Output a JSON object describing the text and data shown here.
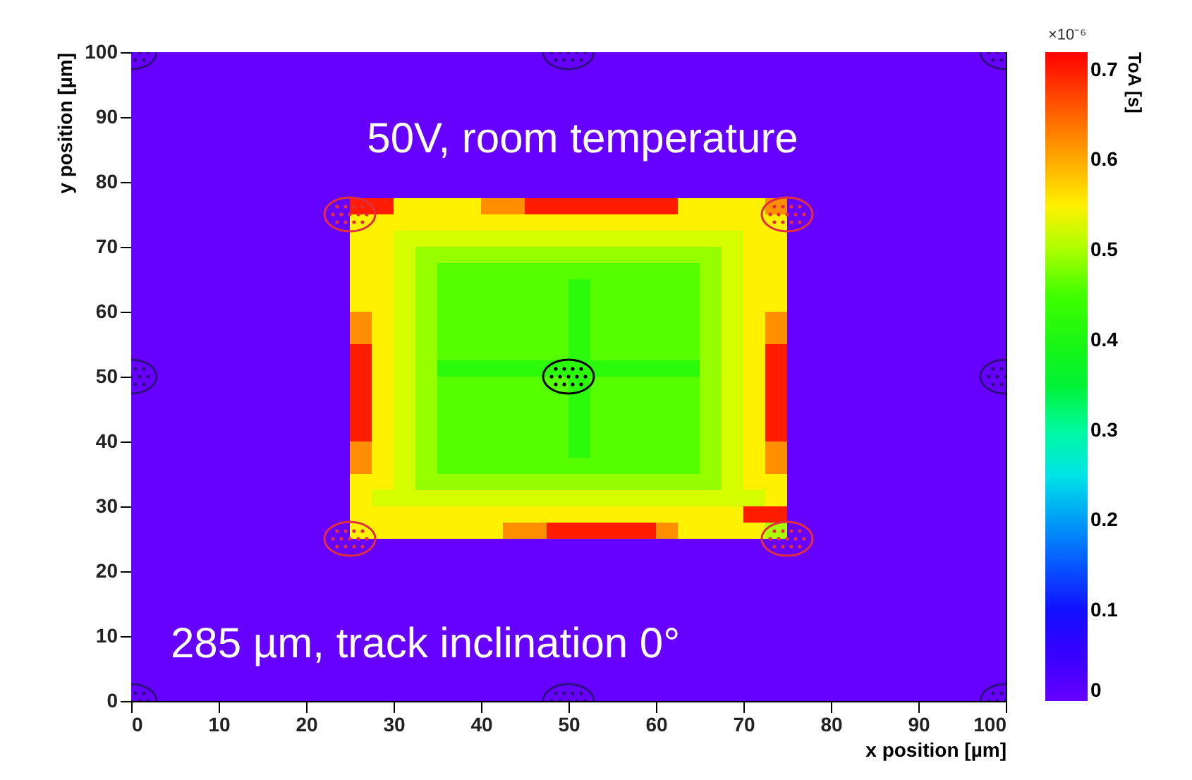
{
  "chart_data": {
    "type": "heatmap",
    "xlabel": "x position [µm]",
    "ylabel": "y position [µm]",
    "clabel": "ToA [s]",
    "annotations": [
      "50V, room temperature",
      "285 µm, track inclination 0°",
      "×10⁻⁶"
    ],
    "xlim": [
      0,
      100
    ],
    "ylim": [
      0,
      100
    ],
    "xticks": [
      0,
      10,
      20,
      30,
      40,
      50,
      60,
      70,
      80,
      90,
      100
    ],
    "yticks": [
      0,
      10,
      20,
      30,
      40,
      50,
      60,
      70,
      80,
      90,
      100
    ],
    "clim": [
      0,
      0.72
    ],
    "cticks": [
      0,
      0.1,
      0.2,
      0.3,
      0.4,
      0.5,
      0.6,
      0.7
    ],
    "colors": [
      "#6600ff",
      "#1400ff",
      "#0080ff",
      "#00ffe0",
      "#00f020",
      "#40ff00",
      "#ffff00",
      "#ff8000",
      "#ff0000"
    ],
    "x": [
      1.25,
      3.75,
      6.25,
      8.75,
      11.25,
      13.75,
      16.25,
      18.75,
      21.25,
      23.75,
      26.25,
      28.75,
      31.25,
      33.75,
      36.25,
      38.75,
      41.25,
      43.75,
      46.25,
      48.75,
      51.25,
      53.75,
      56.25,
      58.75,
      61.25,
      63.75,
      66.25,
      68.75,
      71.25,
      73.75,
      76.25,
      78.75,
      81.25,
      83.75,
      86.25,
      88.75,
      91.25,
      93.75,
      96.25,
      98.75
    ],
    "y": [
      98.75,
      96.25,
      93.75,
      91.25,
      88.75,
      86.25,
      83.75,
      81.25,
      78.75,
      76.25,
      73.75,
      71.25,
      68.75,
      66.25,
      63.75,
      61.25,
      58.75,
      56.25,
      53.75,
      51.25,
      48.75,
      46.25,
      43.75,
      41.25,
      38.75,
      36.25,
      33.75,
      31.25,
      28.75,
      26.25,
      23.75,
      21.25,
      18.75,
      16.25,
      13.75,
      11.25,
      8.75,
      6.25,
      3.75,
      1.25
    ],
    "cells": [
      [
        0,
        0,
        0,
        0,
        0,
        0,
        0,
        0,
        0,
        0,
        0,
        0,
        0,
        0,
        0,
        0,
        0,
        0,
        0,
        0,
        0,
        0,
        0,
        0,
        0,
        0,
        0,
        0,
        0,
        0,
        0,
        0,
        0,
        0,
        0,
        0,
        0,
        0,
        0,
        0
      ],
      [
        0,
        0,
        0,
        0,
        0,
        0,
        0,
        0,
        0,
        0,
        0,
        0,
        0,
        0,
        0,
        0,
        0,
        0,
        0,
        0,
        0,
        0,
        0,
        0,
        0,
        0,
        0,
        0,
        0,
        0,
        0,
        0,
        0,
        0,
        0,
        0,
        0,
        0,
        0,
        0
      ],
      [
        0,
        0,
        0,
        0,
        0,
        0,
        0,
        0,
        0,
        0,
        0,
        0,
        0,
        0,
        0,
        0,
        0,
        0,
        0,
        0,
        0,
        0,
        0,
        0,
        0,
        0,
        0,
        0,
        0,
        0,
        0,
        0,
        0,
        0,
        0,
        0,
        0,
        0,
        0,
        0
      ],
      [
        0,
        0,
        0,
        0,
        0,
        0,
        0,
        0,
        0,
        0,
        0,
        0,
        0,
        0,
        0,
        0,
        0,
        0,
        0,
        0,
        0,
        0,
        0,
        0,
        0,
        0,
        0,
        0,
        0,
        0,
        0,
        0,
        0,
        0,
        0,
        0,
        0,
        0,
        0,
        0
      ],
      [
        0,
        0,
        0,
        0,
        0,
        0,
        0,
        0,
        0,
        0,
        0,
        0,
        0,
        0,
        0,
        0,
        0,
        0,
        0,
        0,
        0,
        0,
        0,
        0,
        0,
        0,
        0,
        0,
        0,
        0,
        0,
        0,
        0,
        0,
        0,
        0,
        0,
        0,
        0,
        0
      ],
      [
        0,
        0,
        0,
        0,
        0,
        0,
        0,
        0,
        0,
        0,
        0,
        0,
        0,
        0,
        0,
        0,
        0,
        0,
        0,
        0,
        0,
        0,
        0,
        0,
        0,
        0,
        0,
        0,
        0,
        0,
        0,
        0,
        0,
        0,
        0,
        0,
        0,
        0,
        0,
        0
      ],
      [
        0,
        0,
        0,
        0,
        0,
        0,
        0,
        0,
        0,
        0,
        0,
        0,
        0,
        0,
        0,
        0,
        0,
        0,
        0,
        0,
        0,
        0,
        0,
        0,
        0,
        0,
        0,
        0,
        0,
        0,
        0,
        0,
        0,
        0,
        0,
        0,
        0,
        0,
        0,
        0
      ],
      [
        0,
        0,
        0,
        0,
        0,
        0,
        0,
        0,
        0,
        0,
        0,
        0,
        0,
        0,
        0,
        0,
        0,
        0,
        0,
        0,
        0,
        0,
        0,
        0,
        0,
        0,
        0,
        0,
        0,
        0,
        0,
        0,
        0,
        0,
        0,
        0,
        0,
        0,
        0,
        0
      ],
      [
        0,
        0,
        0,
        0,
        0,
        0,
        0,
        0,
        0,
        0,
        0,
        0,
        0,
        0,
        0,
        0,
        0,
        0,
        0,
        0,
        0,
        0,
        0,
        0,
        0,
        0,
        0,
        0,
        0,
        0,
        0,
        0,
        0,
        0,
        0,
        0,
        0,
        0,
        0,
        0
      ],
      [
        0,
        0,
        0,
        0,
        0,
        0,
        0,
        0,
        0,
        0,
        0.7,
        0.7,
        0.55,
        0.55,
        0.55,
        0.55,
        0.62,
        0.62,
        0.7,
        0.7,
        0.7,
        0.7,
        0.7,
        0.7,
        0.7,
        0.55,
        0.55,
        0.55,
        0.55,
        0.62,
        0,
        0,
        0,
        0,
        0,
        0,
        0,
        0,
        0,
        0
      ],
      [
        0,
        0,
        0,
        0,
        0,
        0,
        0,
        0,
        0,
        0,
        0.55,
        0.55,
        0.55,
        0.55,
        0.55,
        0.55,
        0.55,
        0.55,
        0.55,
        0.55,
        0.55,
        0.55,
        0.55,
        0.55,
        0.55,
        0.55,
        0.55,
        0.55,
        0.55,
        0.55,
        0,
        0,
        0,
        0,
        0,
        0,
        0,
        0,
        0,
        0
      ],
      [
        0,
        0,
        0,
        0,
        0,
        0,
        0,
        0,
        0,
        0,
        0.55,
        0.55,
        0.52,
        0.52,
        0.52,
        0.52,
        0.52,
        0.52,
        0.52,
        0.52,
        0.52,
        0.52,
        0.52,
        0.52,
        0.52,
        0.52,
        0.52,
        0.52,
        0.55,
        0.55,
        0,
        0,
        0,
        0,
        0,
        0,
        0,
        0,
        0,
        0
      ],
      [
        0,
        0,
        0,
        0,
        0,
        0,
        0,
        0,
        0,
        0,
        0.55,
        0.55,
        0.52,
        0.49,
        0.49,
        0.49,
        0.49,
        0.49,
        0.49,
        0.49,
        0.49,
        0.49,
        0.49,
        0.49,
        0.49,
        0.49,
        0.49,
        0.52,
        0.55,
        0.55,
        0,
        0,
        0,
        0,
        0,
        0,
        0,
        0,
        0,
        0
      ],
      [
        0,
        0,
        0,
        0,
        0,
        0,
        0,
        0,
        0,
        0,
        0.55,
        0.55,
        0.52,
        0.49,
        0.46,
        0.46,
        0.46,
        0.46,
        0.46,
        0.46,
        0.46,
        0.46,
        0.46,
        0.46,
        0.46,
        0.46,
        0.49,
        0.52,
        0.55,
        0.55,
        0,
        0,
        0,
        0,
        0,
        0,
        0,
        0,
        0,
        0
      ],
      [
        0,
        0,
        0,
        0,
        0,
        0,
        0,
        0,
        0,
        0,
        0.55,
        0.55,
        0.52,
        0.49,
        0.46,
        0.46,
        0.46,
        0.46,
        0.46,
        0.46,
        0.42,
        0.46,
        0.46,
        0.46,
        0.46,
        0.46,
        0.49,
        0.52,
        0.55,
        0.55,
        0,
        0,
        0,
        0,
        0,
        0,
        0,
        0,
        0,
        0
      ],
      [
        0,
        0,
        0,
        0,
        0,
        0,
        0,
        0,
        0,
        0,
        0.55,
        0.55,
        0.52,
        0.49,
        0.46,
        0.46,
        0.46,
        0.46,
        0.46,
        0.46,
        0.42,
        0.46,
        0.46,
        0.46,
        0.46,
        0.46,
        0.49,
        0.52,
        0.55,
        0.55,
        0,
        0,
        0,
        0,
        0,
        0,
        0,
        0,
        0,
        0
      ],
      [
        0,
        0,
        0,
        0,
        0,
        0,
        0,
        0,
        0,
        0,
        0.62,
        0.55,
        0.52,
        0.49,
        0.46,
        0.46,
        0.46,
        0.46,
        0.46,
        0.46,
        0.42,
        0.46,
        0.46,
        0.46,
        0.46,
        0.46,
        0.49,
        0.52,
        0.55,
        0.62,
        0,
        0,
        0,
        0,
        0,
        0,
        0,
        0,
        0,
        0
      ],
      [
        0,
        0,
        0,
        0,
        0,
        0,
        0,
        0,
        0,
        0,
        0.62,
        0.55,
        0.52,
        0.49,
        0.46,
        0.46,
        0.46,
        0.46,
        0.46,
        0.46,
        0.42,
        0.46,
        0.46,
        0.46,
        0.46,
        0.46,
        0.49,
        0.52,
        0.55,
        0.62,
        0,
        0,
        0,
        0,
        0,
        0,
        0,
        0,
        0,
        0
      ],
      [
        0,
        0,
        0,
        0,
        0,
        0,
        0,
        0,
        0,
        0,
        0.7,
        0.55,
        0.52,
        0.49,
        0.46,
        0.46,
        0.46,
        0.46,
        0.46,
        0.46,
        0.42,
        0.46,
        0.46,
        0.46,
        0.46,
        0.46,
        0.49,
        0.52,
        0.55,
        0.7,
        0,
        0,
        0,
        0,
        0,
        0,
        0,
        0,
        0,
        0
      ],
      [
        0,
        0,
        0,
        0,
        0,
        0,
        0,
        0,
        0,
        0,
        0.7,
        0.55,
        0.52,
        0.49,
        0.42,
        0.42,
        0.42,
        0.42,
        0.42,
        0.42,
        0.42,
        0.42,
        0.42,
        0.42,
        0.42,
        0.42,
        0.49,
        0.52,
        0.55,
        0.7,
        0,
        0,
        0,
        0,
        0,
        0,
        0,
        0,
        0,
        0
      ],
      [
        0,
        0,
        0,
        0,
        0,
        0,
        0,
        0,
        0,
        0,
        0.7,
        0.55,
        0.52,
        0.49,
        0.46,
        0.46,
        0.46,
        0.46,
        0.46,
        0.46,
        0.42,
        0.46,
        0.46,
        0.46,
        0.46,
        0.46,
        0.49,
        0.52,
        0.55,
        0.7,
        0,
        0,
        0,
        0,
        0,
        0,
        0,
        0,
        0,
        0
      ],
      [
        0,
        0,
        0,
        0,
        0,
        0,
        0,
        0,
        0,
        0,
        0.7,
        0.55,
        0.52,
        0.49,
        0.46,
        0.46,
        0.46,
        0.46,
        0.46,
        0.46,
        0.42,
        0.46,
        0.46,
        0.46,
        0.46,
        0.46,
        0.49,
        0.52,
        0.55,
        0.7,
        0,
        0,
        0,
        0,
        0,
        0,
        0,
        0,
        0,
        0
      ],
      [
        0,
        0,
        0,
        0,
        0,
        0,
        0,
        0,
        0,
        0,
        0.7,
        0.55,
        0.52,
        0.49,
        0.46,
        0.46,
        0.46,
        0.46,
        0.46,
        0.46,
        0.42,
        0.46,
        0.46,
        0.46,
        0.46,
        0.46,
        0.49,
        0.52,
        0.55,
        0.7,
        0,
        0,
        0,
        0,
        0,
        0,
        0,
        0,
        0,
        0
      ],
      [
        0,
        0,
        0,
        0,
        0,
        0,
        0,
        0,
        0,
        0,
        0.7,
        0.55,
        0.52,
        0.49,
        0.46,
        0.46,
        0.46,
        0.46,
        0.46,
        0.46,
        0.42,
        0.46,
        0.46,
        0.46,
        0.46,
        0.46,
        0.49,
        0.52,
        0.55,
        0.7,
        0,
        0,
        0,
        0,
        0,
        0,
        0,
        0,
        0,
        0
      ],
      [
        0,
        0,
        0,
        0,
        0,
        0,
        0,
        0,
        0,
        0,
        0.62,
        0.55,
        0.52,
        0.49,
        0.46,
        0.46,
        0.46,
        0.46,
        0.46,
        0.46,
        0.42,
        0.46,
        0.46,
        0.46,
        0.46,
        0.46,
        0.49,
        0.52,
        0.55,
        0.62,
        0,
        0,
        0,
        0,
        0,
        0,
        0,
        0,
        0,
        0
      ],
      [
        0,
        0,
        0,
        0,
        0,
        0,
        0,
        0,
        0,
        0,
        0.62,
        0.55,
        0.52,
        0.49,
        0.46,
        0.46,
        0.46,
        0.46,
        0.46,
        0.46,
        0.46,
        0.46,
        0.46,
        0.46,
        0.46,
        0.46,
        0.49,
        0.52,
        0.55,
        0.62,
        0,
        0,
        0,
        0,
        0,
        0,
        0,
        0,
        0,
        0
      ],
      [
        0,
        0,
        0,
        0,
        0,
        0,
        0,
        0,
        0,
        0,
        0.55,
        0.55,
        0.52,
        0.49,
        0.49,
        0.49,
        0.49,
        0.49,
        0.49,
        0.49,
        0.49,
        0.49,
        0.49,
        0.49,
        0.49,
        0.49,
        0.49,
        0.52,
        0.55,
        0.55,
        0,
        0,
        0,
        0,
        0,
        0,
        0,
        0,
        0,
        0
      ],
      [
        0,
        0,
        0,
        0,
        0,
        0,
        0,
        0,
        0,
        0,
        0.55,
        0.52,
        0.52,
        0.52,
        0.52,
        0.52,
        0.52,
        0.52,
        0.52,
        0.52,
        0.52,
        0.52,
        0.52,
        0.52,
        0.52,
        0.52,
        0.52,
        0.52,
        0.52,
        0.55,
        0,
        0,
        0,
        0,
        0,
        0,
        0,
        0,
        0,
        0
      ],
      [
        0,
        0,
        0,
        0,
        0,
        0,
        0,
        0,
        0,
        0,
        0.55,
        0.55,
        0.55,
        0.55,
        0.55,
        0.55,
        0.55,
        0.55,
        0.55,
        0.55,
        0.55,
        0.55,
        0.55,
        0.55,
        0.55,
        0.55,
        0.55,
        0.55,
        0.7,
        0.7,
        0,
        0,
        0,
        0,
        0,
        0,
        0,
        0,
        0,
        0
      ],
      [
        0,
        0,
        0,
        0,
        0,
        0,
        0,
        0,
        0,
        0,
        0.55,
        0.55,
        0.55,
        0.55,
        0.55,
        0.55,
        0.55,
        0.62,
        0.62,
        0.7,
        0.7,
        0.7,
        0.7,
        0.7,
        0.62,
        0.55,
        0.55,
        0.55,
        0.55,
        0.5,
        0,
        0,
        0,
        0,
        0,
        0,
        0,
        0,
        0,
        0
      ],
      [
        0,
        0,
        0,
        0,
        0,
        0,
        0,
        0,
        0,
        0,
        0,
        0,
        0,
        0,
        0,
        0,
        0,
        0,
        0,
        0,
        0,
        0,
        0,
        0,
        0,
        0,
        0,
        0,
        0,
        0,
        0,
        0,
        0,
        0,
        0,
        0,
        0,
        0,
        0,
        0
      ],
      [
        0,
        0,
        0,
        0,
        0,
        0,
        0,
        0,
        0,
        0,
        0,
        0,
        0,
        0,
        0,
        0,
        0,
        0,
        0,
        0,
        0,
        0,
        0,
        0,
        0,
        0,
        0,
        0,
        0,
        0,
        0,
        0,
        0,
        0,
        0,
        0,
        0,
        0,
        0,
        0
      ],
      [
        0,
        0,
        0,
        0,
        0,
        0,
        0,
        0,
        0,
        0,
        0,
        0,
        0,
        0,
        0,
        0,
        0,
        0,
        0,
        0,
        0,
        0,
        0,
        0,
        0,
        0,
        0,
        0,
        0,
        0,
        0,
        0,
        0,
        0,
        0,
        0,
        0,
        0,
        0,
        0
      ],
      [
        0,
        0,
        0,
        0,
        0,
        0,
        0,
        0,
        0,
        0,
        0,
        0,
        0,
        0,
        0,
        0,
        0,
        0,
        0,
        0,
        0,
        0,
        0,
        0,
        0,
        0,
        0,
        0,
        0,
        0,
        0,
        0,
        0,
        0,
        0,
        0,
        0,
        0,
        0,
        0
      ],
      [
        0,
        0,
        0,
        0,
        0,
        0,
        0,
        0,
        0,
        0,
        0,
        0,
        0,
        0,
        0,
        0,
        0,
        0,
        0,
        0,
        0,
        0,
        0,
        0,
        0,
        0,
        0,
        0,
        0,
        0,
        0,
        0,
        0,
        0,
        0,
        0,
        0,
        0,
        0,
        0
      ],
      [
        0,
        0,
        0,
        0,
        0,
        0,
        0,
        0,
        0,
        0,
        0,
        0,
        0,
        0,
        0,
        0,
        0,
        0,
        0,
        0,
        0,
        0,
        0,
        0,
        0,
        0,
        0,
        0,
        0,
        0,
        0,
        0,
        0,
        0,
        0,
        0,
        0,
        0,
        0,
        0
      ],
      [
        0,
        0,
        0,
        0,
        0,
        0,
        0,
        0,
        0,
        0,
        0,
        0,
        0,
        0,
        0,
        0,
        0,
        0,
        0,
        0,
        0,
        0,
        0,
        0,
        0,
        0,
        0,
        0,
        0,
        0,
        0,
        0,
        0,
        0,
        0,
        0,
        0,
        0,
        0,
        0
      ],
      [
        0,
        0,
        0,
        0,
        0,
        0,
        0,
        0,
        0,
        0,
        0,
        0,
        0,
        0,
        0,
        0,
        0,
        0,
        0,
        0,
        0,
        0,
        0,
        0,
        0,
        0,
        0,
        0,
        0,
        0,
        0,
        0,
        0,
        0,
        0,
        0,
        0,
        0,
        0,
        0
      ],
      [
        0,
        0,
        0,
        0,
        0,
        0,
        0,
        0,
        0,
        0,
        0,
        0,
        0,
        0,
        0,
        0,
        0,
        0,
        0,
        0,
        0,
        0,
        0,
        0,
        0,
        0,
        0,
        0,
        0,
        0,
        0,
        0,
        0,
        0,
        0,
        0,
        0,
        0,
        0,
        0
      ],
      [
        0,
        0,
        0,
        0,
        0,
        0,
        0,
        0,
        0,
        0,
        0,
        0,
        0,
        0,
        0,
        0,
        0,
        0,
        0,
        0,
        0,
        0,
        0,
        0,
        0,
        0,
        0,
        0,
        0,
        0,
        0,
        0,
        0,
        0,
        0,
        0,
        0,
        0,
        0,
        0
      ]
    ]
  }
}
